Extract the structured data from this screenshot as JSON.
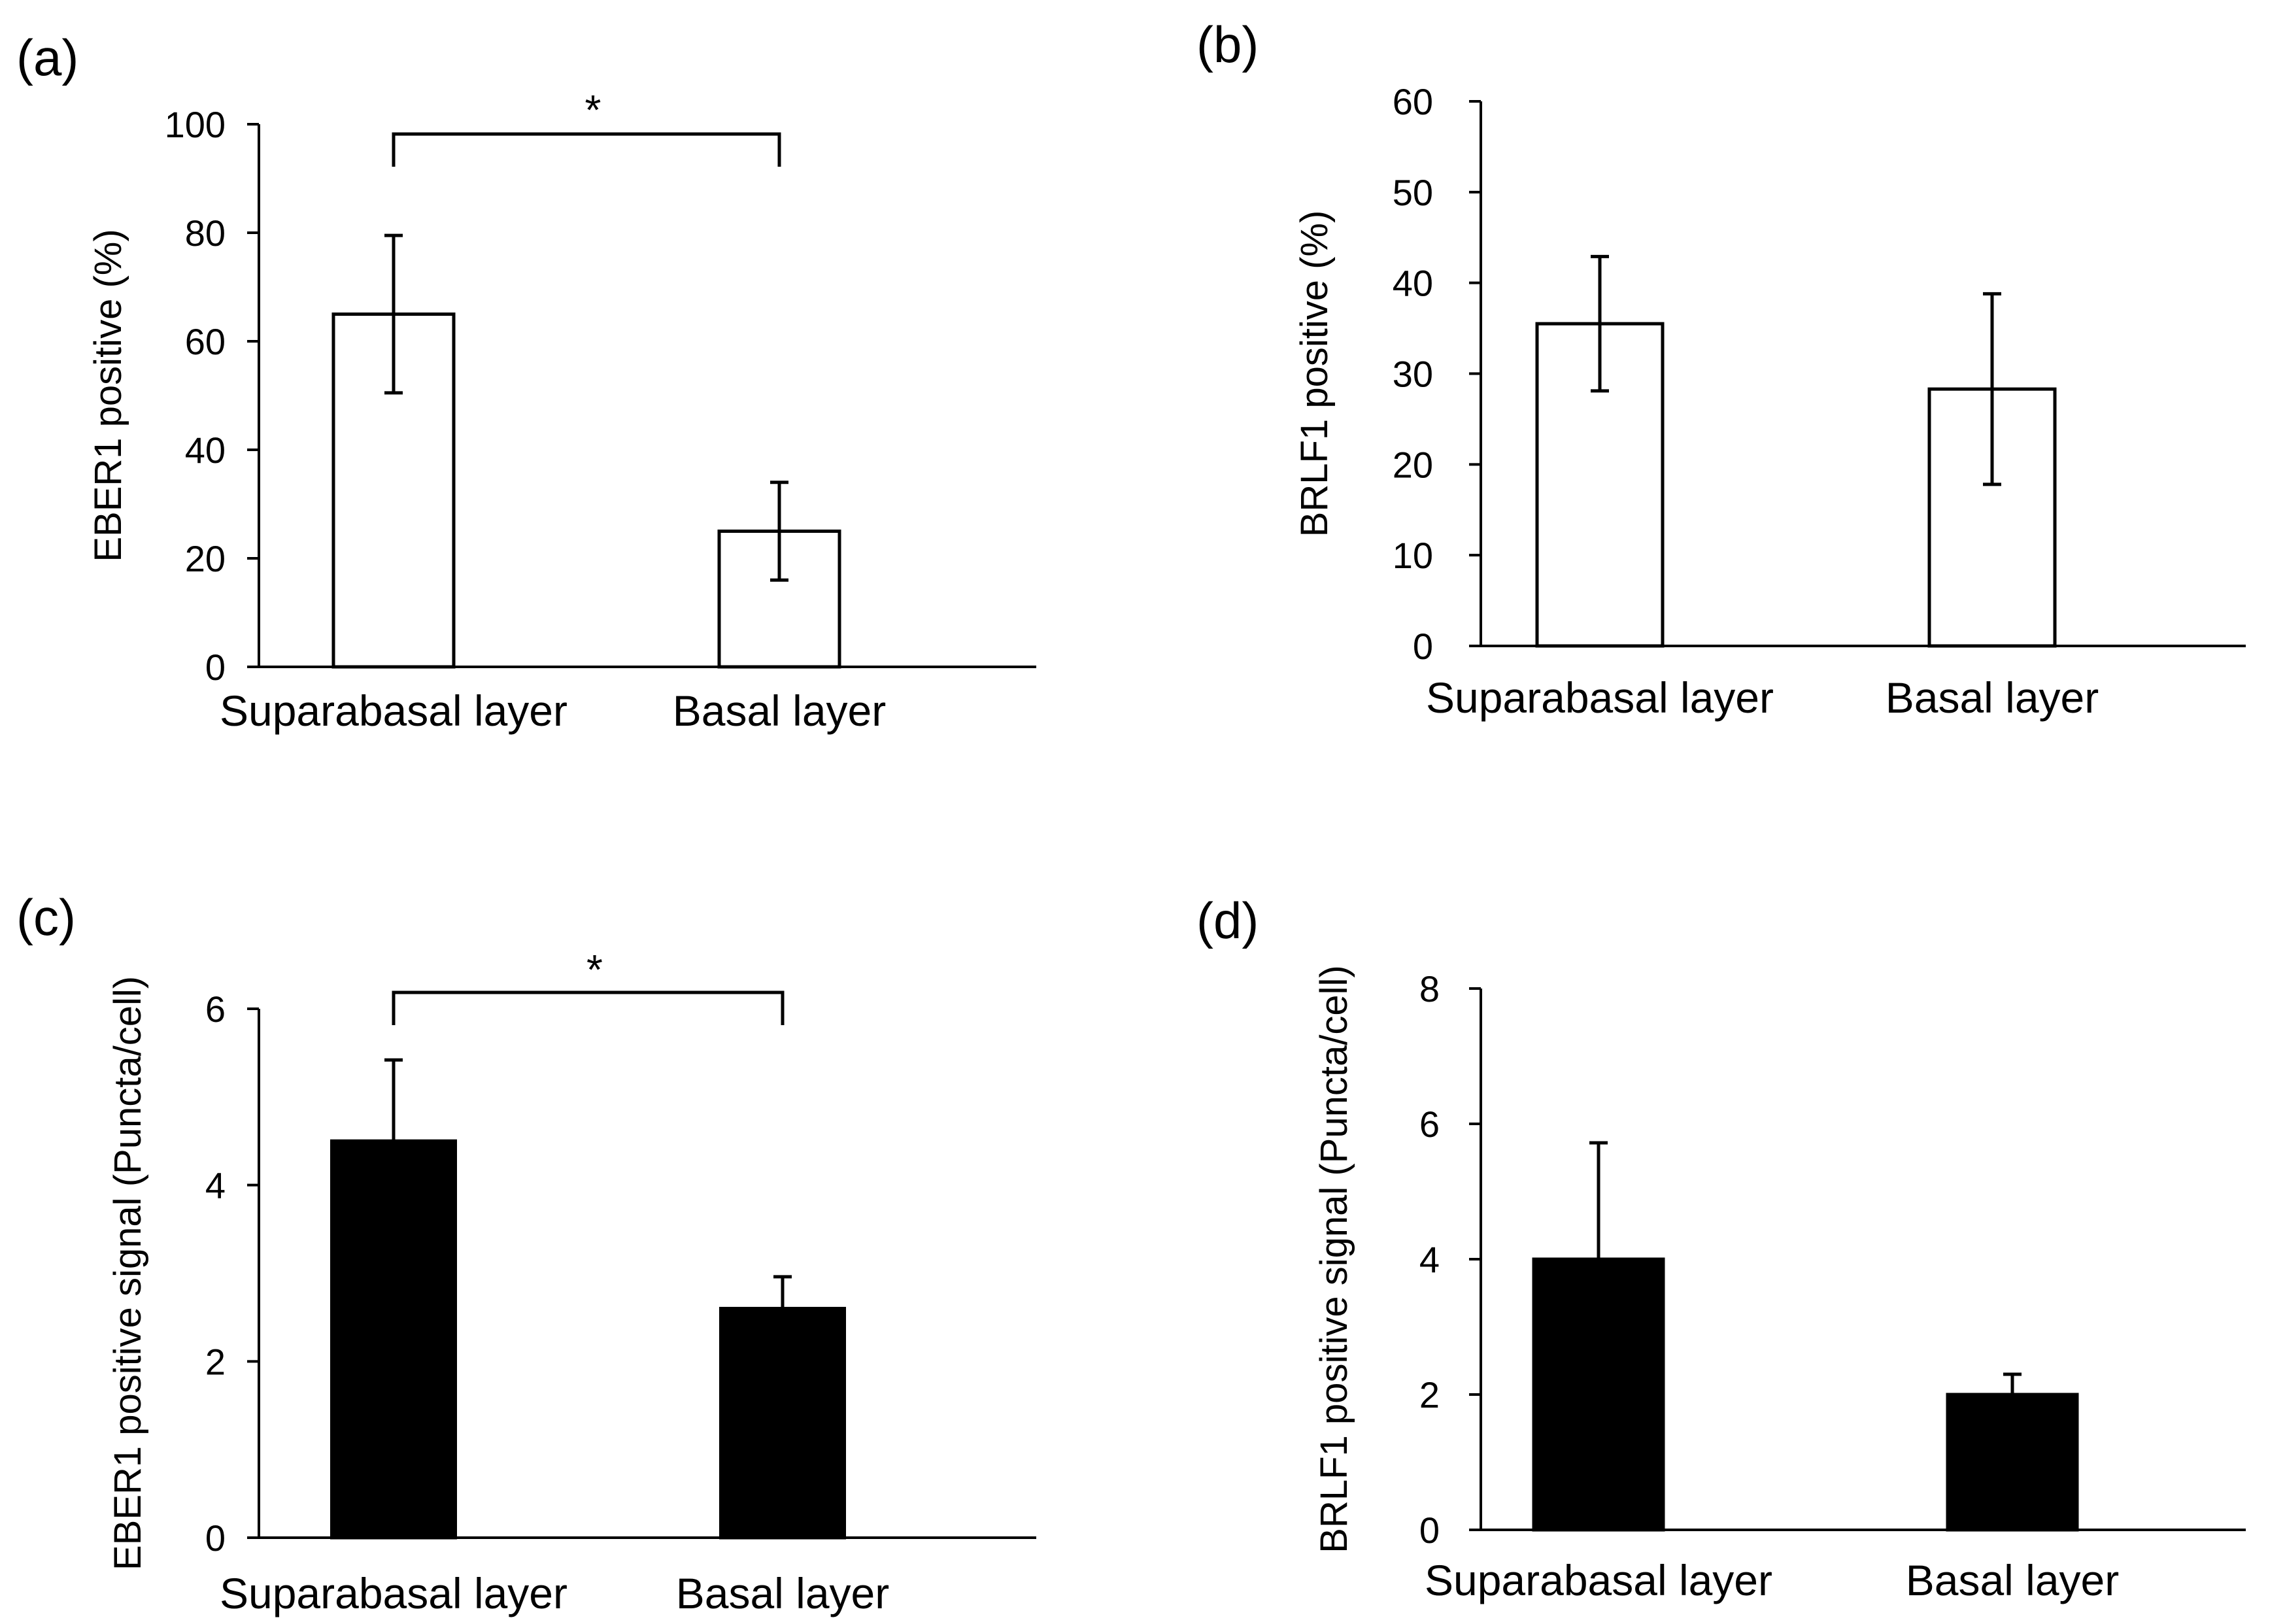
{
  "chart_data": [
    {
      "type": "bar",
      "panel": "(a)",
      "categories": [
        "Suparabasal layer",
        "Basal layer"
      ],
      "values": [
        65,
        25
      ],
      "errors": [
        14.5,
        9
      ],
      "ylabel": "EBER1 positive (%)",
      "xlabel": "",
      "ylim": [
        0,
        100
      ],
      "yticks": [
        "0",
        "20",
        "40",
        "60",
        "80",
        "100"
      ],
      "bar_fill": "#ffffff",
      "significance": "*"
    },
    {
      "type": "bar",
      "panel": "(b)",
      "categories": [
        "Suparabasal layer",
        "Basal layer"
      ],
      "values": [
        35.5,
        28.3
      ],
      "errors": [
        7.4,
        10.5
      ],
      "ylabel": "BRLF1 positive (%)",
      "xlabel": "",
      "ylim": [
        0,
        60
      ],
      "yticks": [
        "0",
        "10",
        "20",
        "30",
        "40",
        "50",
        "60"
      ],
      "bar_fill": "#ffffff",
      "significance": ""
    },
    {
      "type": "bar",
      "panel": "(c)",
      "categories": [
        "Suparabasal layer",
        "Basal layer"
      ],
      "values": [
        4.5,
        2.6
      ],
      "errors": [
        0.92,
        0.36
      ],
      "ylabel": "EBER1 positive signal (Puncta/cell)",
      "xlabel": "",
      "ylim": [
        0,
        6
      ],
      "yticks": [
        "0",
        "2",
        "4",
        "6"
      ],
      "bar_fill": "#000000",
      "significance": "*"
    },
    {
      "type": "bar",
      "panel": "(d)",
      "categories": [
        "Suparabasal layer",
        "Basal layer"
      ],
      "values": [
        4.0,
        2.0
      ],
      "errors": [
        1.72,
        0.3
      ],
      "ylabel": "BRLF1 positive signal (Puncta/cell)",
      "xlabel": "",
      "ylim": [
        0,
        8
      ],
      "yticks": [
        "0",
        "2",
        "4",
        "6",
        "8"
      ],
      "bar_fill": "#000000",
      "significance": ""
    }
  ]
}
